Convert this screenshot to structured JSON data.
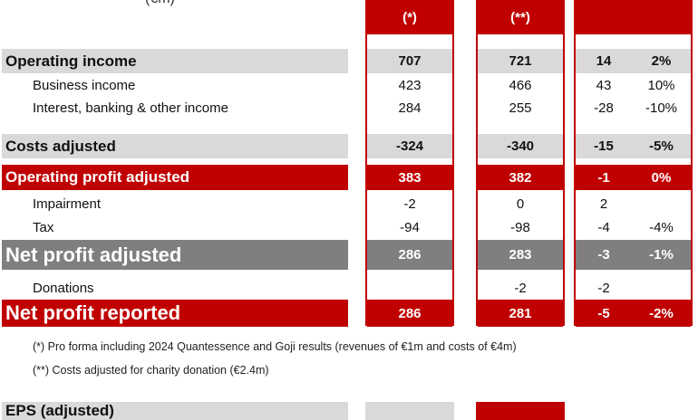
{
  "header": {
    "unit_label": "(€m)",
    "col1_marker": "(*)",
    "col2_marker": "(**)"
  },
  "rows": [
    {
      "label": "Operating income",
      "c1": "707",
      "c2": "721",
      "d1": "14",
      "d2": "2%"
    },
    {
      "label": "Business income",
      "c1": "423",
      "c2": "466",
      "d1": "43",
      "d2": "10%"
    },
    {
      "label": "Interest, banking & other income",
      "c1": "284",
      "c2": "255",
      "d1": "-28",
      "d2": "-10%"
    },
    {
      "label": "Costs adjusted",
      "c1": "-324",
      "c2": "-340",
      "d1": "-15",
      "d2": "-5%"
    },
    {
      "label": "Operating profit adjusted",
      "c1": "383",
      "c2": "382",
      "d1": "-1",
      "d2": "0%"
    },
    {
      "label": "Impairment",
      "c1": "-2",
      "c2": "0",
      "d1": "2",
      "d2": ""
    },
    {
      "label": "Tax",
      "c1": "-94",
      "c2": "-98",
      "d1": "-4",
      "d2": "-4%"
    },
    {
      "label": "Net profit adjusted",
      "c1": "286",
      "c2": "283",
      "d1": "-3",
      "d2": "-1%"
    },
    {
      "label": "Donations",
      "c1": "",
      "c2": "-2",
      "d1": "-2",
      "d2": ""
    },
    {
      "label": "Net profit reported",
      "c1": "286",
      "c2": "281",
      "d1": "-5",
      "d2": "-2%"
    }
  ],
  "footnotes": [
    "(*) Pro forma including 2024 Quantessence and Goji results (revenues of €1m and costs of €4m)",
    "(**) Costs adjusted for charity donation (€2.4m)"
  ],
  "partial_bottom_label": "EPS (adjusted)",
  "colors": {
    "accent_red": "#c00000",
    "row_gray": "#d9d9d9",
    "row_dark": "#7f7f7f"
  }
}
